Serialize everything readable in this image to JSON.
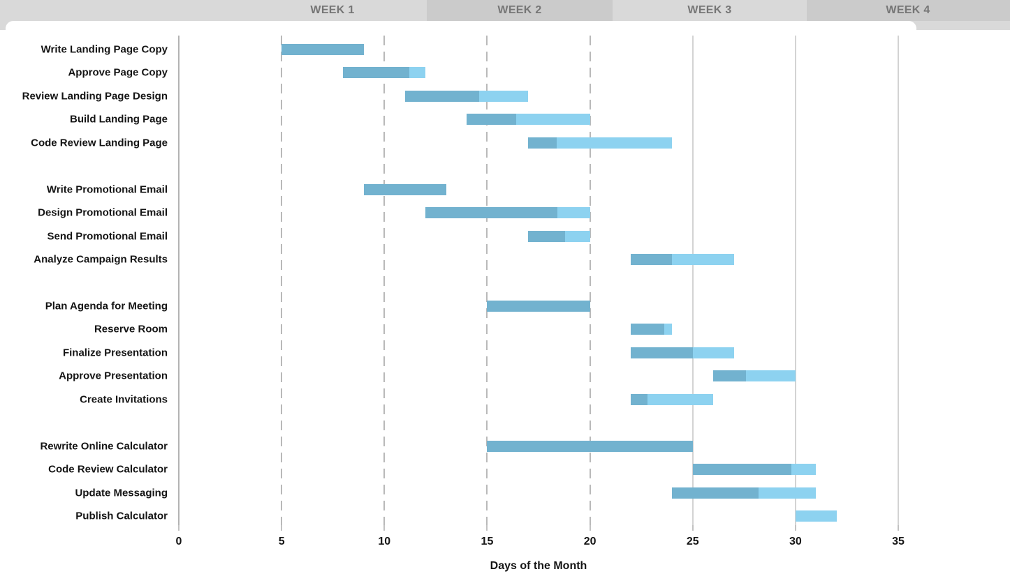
{
  "header": {
    "weeks": [
      {
        "label": "WEEK 1"
      },
      {
        "label": "WEEK 2"
      },
      {
        "label": "WEEK 3"
      },
      {
        "label": "WEEK 4"
      }
    ]
  },
  "axis": {
    "tick_labels": [
      "0",
      "5",
      "10",
      "15",
      "20",
      "25",
      "30",
      "35"
    ],
    "title": "Days of the Month"
  },
  "chart_data": {
    "type": "bar",
    "subtype": "gantt",
    "title": "",
    "xlabel": "Days of the Month",
    "ylabel": "",
    "xlim": [
      0,
      40.4
    ],
    "x_ticks": [
      0,
      5,
      10,
      15,
      20,
      25,
      30,
      35
    ],
    "gridlines": {
      "dashed_at_days": [
        5,
        10,
        15,
        20
      ],
      "solid_at_days": [
        25,
        30,
        35
      ],
      "axis_line_day": 0
    },
    "legend": "none",
    "groups": [
      {
        "tasks": [
          {
            "label": "Write Landing Page Copy",
            "start_day": 5,
            "end_day": 9,
            "percent_complete": 100
          },
          {
            "label": "Approve Page Copy",
            "start_day": 8,
            "end_day": 12,
            "percent_complete": 80
          },
          {
            "label": "Review Landing Page Design",
            "start_day": 11,
            "end_day": 17,
            "percent_complete": 60
          },
          {
            "label": "Build Landing Page",
            "start_day": 14,
            "end_day": 20,
            "percent_complete": 40
          },
          {
            "label": "Code Review Landing Page",
            "start_day": 17,
            "end_day": 24,
            "percent_complete": 20
          }
        ]
      },
      {
        "tasks": [
          {
            "label": "Write Promotional Email",
            "start_day": 9,
            "end_day": 13,
            "percent_complete": 100
          },
          {
            "label": "Design Promotional Email",
            "start_day": 12,
            "end_day": 20,
            "percent_complete": 80
          },
          {
            "label": "Send Promotional Email",
            "start_day": 17,
            "end_day": 20,
            "percent_complete": 60
          },
          {
            "label": "Analyze Campaign Results",
            "start_day": 22,
            "end_day": 27,
            "percent_complete": 40
          }
        ]
      },
      {
        "tasks": [
          {
            "label": "Plan Agenda for Meeting",
            "start_day": 15,
            "end_day": 20,
            "percent_complete": 100
          },
          {
            "label": "Reserve Room",
            "start_day": 22,
            "end_day": 24,
            "percent_complete": 80
          },
          {
            "label": "Finalize Presentation",
            "start_day": 22,
            "end_day": 27,
            "percent_complete": 60
          },
          {
            "label": "Approve Presentation",
            "start_day": 26,
            "end_day": 30,
            "percent_complete": 40
          },
          {
            "label": "Create Invitations",
            "start_day": 22,
            "end_day": 26,
            "percent_complete": 20
          }
        ]
      },
      {
        "tasks": [
          {
            "label": "Rewrite Online Calculator",
            "start_day": 15,
            "end_day": 25,
            "percent_complete": 100
          },
          {
            "label": "Code Review Calculator",
            "start_day": 25,
            "end_day": 31,
            "percent_complete": 80
          },
          {
            "label": "Update Messaging",
            "start_day": 24,
            "end_day": 31,
            "percent_complete": 60
          },
          {
            "label": "Publish Calculator",
            "start_day": 30,
            "end_day": 32,
            "percent_complete": 0
          }
        ]
      }
    ]
  },
  "colors": {
    "bar_complete": "#72b2cf",
    "bar_remaining": "#8dd2f0",
    "header_band_light": "#d9d9d9",
    "header_band_dark": "#cbcbcb",
    "header_text": "#767676",
    "grid_dashed": "#b9b9b9",
    "grid_solid": "#d3d3d3",
    "axis_line": "#b3b3b3",
    "tick": "#c2c2c2",
    "text": "#141414"
  }
}
